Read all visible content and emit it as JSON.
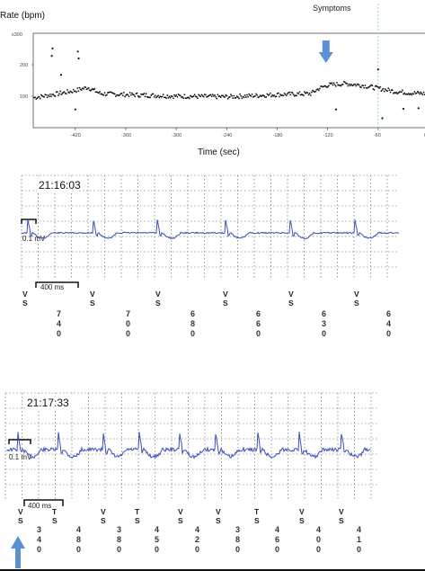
{
  "chart_data": [
    {
      "type": "scatter",
      "ylabel": "Rate (bpm)",
      "xlabel": "Time (sec)",
      "y_top_tick": "x300",
      "y_ticks": [
        100,
        200
      ],
      "x_ticks": [
        -420,
        -360,
        -300,
        -240,
        -180,
        -120,
        -60,
        0
      ],
      "xlim": [
        -470,
        0
      ],
      "ylim": [
        0,
        300
      ],
      "grid": false,
      "annotation": {
        "label": "Symptoms",
        "x": -60
      },
      "arrow_x": -122,
      "outliers": [
        {
          "x": -447,
          "y": 252
        },
        {
          "x": -448,
          "y": 228
        },
        {
          "x": -417,
          "y": 242
        },
        {
          "x": -416,
          "y": 220
        },
        {
          "x": -437,
          "y": 168
        },
        {
          "x": -420,
          "y": 58
        },
        {
          "x": -60,
          "y": 185
        },
        {
          "x": -55,
          "y": 30
        },
        {
          "x": -110,
          "y": 58
        },
        {
          "x": -30,
          "y": 60
        },
        {
          "x": -12,
          "y": 62
        }
      ],
      "trend_points": [
        [
          -470,
          95
        ],
        [
          -440,
          108
        ],
        [
          -420,
          118
        ],
        [
          -405,
          128
        ],
        [
          -390,
          108
        ],
        [
          -360,
          105
        ],
        [
          -300,
          100
        ],
        [
          -240,
          98
        ],
        [
          -180,
          105
        ],
        [
          -140,
          108
        ],
        [
          -130,
          125
        ],
        [
          -120,
          135
        ],
        [
          -100,
          140
        ],
        [
          -80,
          135
        ],
        [
          -60,
          125
        ],
        [
          -40,
          115
        ],
        [
          -20,
          110
        ],
        [
          0,
          108
        ]
      ]
    },
    {
      "type": "line",
      "timestamp": "21:16:03",
      "calibration_label": "0.1 mV",
      "scale_label": "400 ms",
      "grid": true,
      "markers": [
        {
          "label": [
            "V",
            "S"
          ],
          "interval": [
            "7",
            "4",
            "0"
          ]
        },
        {
          "label": [
            "V",
            "S"
          ],
          "interval": [
            "7",
            "0",
            "0"
          ]
        },
        {
          "label": [
            "V",
            "S"
          ],
          "interval": [
            "6",
            "8",
            "0"
          ]
        },
        {
          "label": [
            "V",
            "S"
          ],
          "interval": [
            "6",
            "6",
            "0"
          ]
        },
        {
          "label": [
            "V",
            "S"
          ],
          "interval": [
            "6",
            "3",
            "0"
          ]
        },
        {
          "label": [
            "V",
            "S"
          ],
          "interval": [
            "6",
            "4",
            "0"
          ]
        }
      ]
    },
    {
      "type": "line",
      "timestamp": "21:17:33",
      "calibration_label": "0.1 mV",
      "scale_label": "400 ms",
      "grid": true,
      "markers": [
        {
          "label": [
            "V",
            "S"
          ],
          "interval": [
            "3",
            "4",
            "0"
          ]
        },
        {
          "label": [
            "T",
            "S"
          ],
          "interval": [
            "4",
            "8",
            "0"
          ]
        },
        {
          "label": [
            "V",
            "S"
          ],
          "interval": [
            "3",
            "8",
            "0"
          ]
        },
        {
          "label": [
            "T",
            "S"
          ],
          "interval": [
            "4",
            "5",
            "0"
          ]
        },
        {
          "label": [
            "V",
            "S"
          ],
          "interval": [
            "4",
            "2",
            "0"
          ]
        },
        {
          "label": [
            "V",
            "S"
          ],
          "interval": [
            "3",
            "8",
            "0"
          ]
        },
        {
          "label": [
            "T",
            "S"
          ],
          "interval": [
            "4",
            "6",
            "0"
          ]
        },
        {
          "label": [
            "V",
            "S"
          ],
          "interval": [
            "4",
            "0",
            "0"
          ]
        },
        {
          "label": [
            "V",
            "S"
          ],
          "interval": [
            "4",
            "1",
            "0"
          ]
        }
      ]
    }
  ],
  "colors": {
    "trace": "#3a4fb8",
    "arrow": "#5b8fd6",
    "symptoms_line": "#6cc4e8",
    "grid": "#555555",
    "points": "#111111"
  }
}
